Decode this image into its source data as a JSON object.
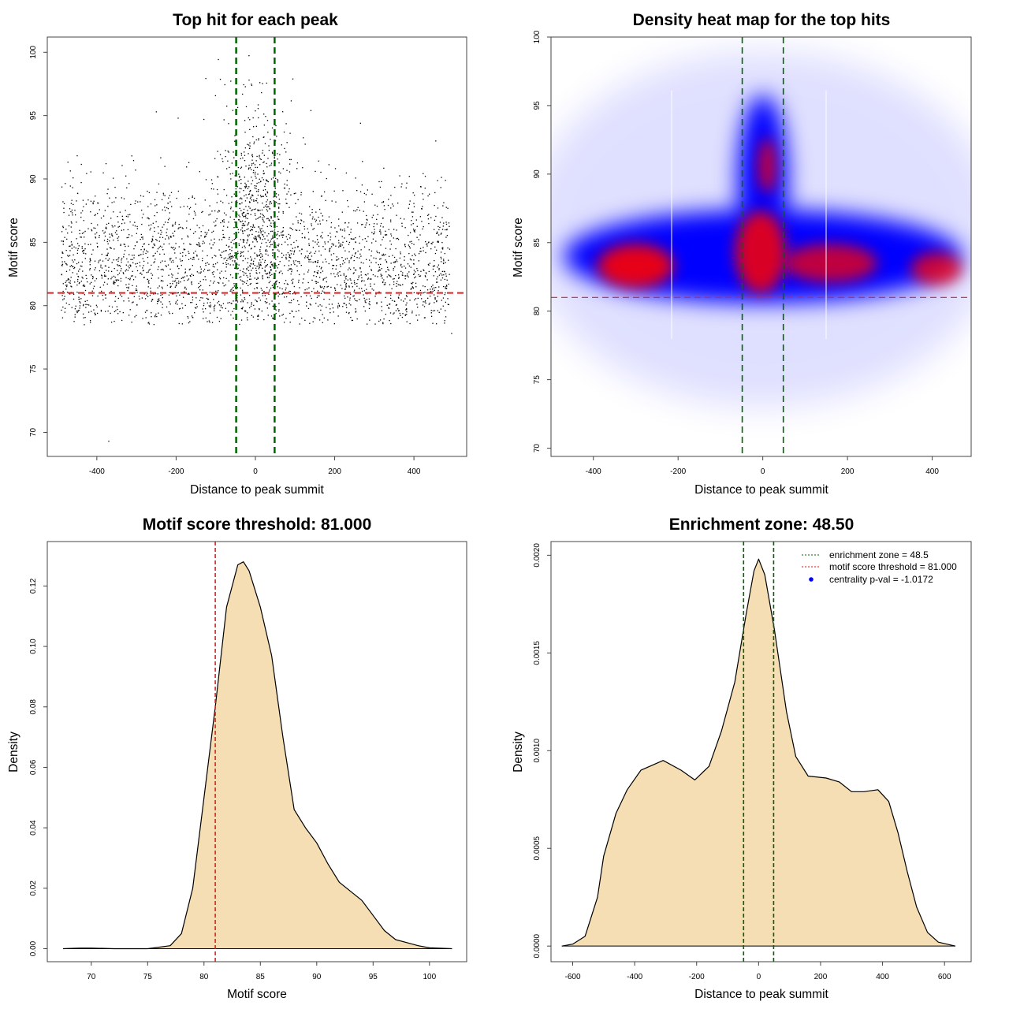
{
  "chart_data": [
    {
      "id": "scatter",
      "type": "scatter",
      "title": "Top hit for each peak",
      "xlabel": "Distance to peak summit",
      "ylabel": "Motif score",
      "xlim": [
        -525,
        533
      ],
      "ylim": [
        68.1,
        101.2
      ],
      "xticks": [
        -400,
        -200,
        0,
        200,
        400
      ],
      "yticks": [
        70,
        75,
        80,
        85,
        90,
        95,
        100
      ],
      "hlines": [
        {
          "y": 81,
          "color": "#e02020"
        }
      ],
      "vlines": [
        {
          "x": -48.5,
          "color": "#006400"
        },
        {
          "x": 48.5,
          "color": "#006400"
        }
      ],
      "point_model": {
        "background": {
          "n": 2600,
          "x_range": [
            -490,
            490
          ],
          "y_mode": 83,
          "y_spread": 2.6
        },
        "central": {
          "n": 550,
          "x_center": 0,
          "x_sd": 45,
          "y_center": 88,
          "y_sd": 4.2
        },
        "outliers": [
          [
            -370,
            69.3
          ],
          [
            495,
            77.8
          ],
          [
            -250,
            95.3
          ],
          [
            -130,
            94.7
          ],
          [
            -195,
            94.8
          ],
          [
            140,
            95.4
          ],
          [
            265,
            94.4
          ],
          [
            455,
            93.0
          ]
        ]
      }
    },
    {
      "id": "heatmap",
      "type": "heatmap",
      "title": "Density heat map for the top hits",
      "xlabel": "Distance to peak summit",
      "ylabel": "Motif score",
      "xlim": [
        -500,
        492
      ],
      "ylim": [
        69.4,
        100
      ],
      "xticks": [
        -400,
        -200,
        0,
        200,
        400
      ],
      "yticks": [
        70,
        75,
        80,
        85,
        90,
        95,
        100
      ],
      "hlines": [
        {
          "y": 81,
          "color": "#e02020"
        }
      ],
      "vlines": [
        {
          "x": -48.5,
          "color": "#006400"
        },
        {
          "x": 48.5,
          "color": "#006400"
        }
      ],
      "density_regions": [
        {
          "level": "low",
          "x": 0,
          "y": 86,
          "rx": 560,
          "ry": 13,
          "color": "#0000ff",
          "opacity": 0.12
        },
        {
          "level": "mid",
          "x": 0,
          "y": 84,
          "rx": 470,
          "ry": 3.4,
          "color": "#0000ff",
          "opacity": 1
        },
        {
          "level": "mid",
          "x": 0,
          "y": 89.5,
          "rx": 60,
          "ry": 6.3,
          "color": "#0000ff",
          "opacity": 1
        },
        {
          "level": "high",
          "x": -300,
          "y": 83.3,
          "rx": 90,
          "ry": 1.6,
          "color": "#ff0000",
          "opacity": 0.9
        },
        {
          "level": "high",
          "x": -5,
          "y": 84.3,
          "rx": 60,
          "ry": 3,
          "color": "#ff0000",
          "opacity": 0.85
        },
        {
          "level": "high",
          "x": 10,
          "y": 90.6,
          "rx": 20,
          "ry": 2,
          "color": "#ff0000",
          "opacity": 0.8
        },
        {
          "level": "high",
          "x": 160,
          "y": 83.5,
          "rx": 110,
          "ry": 1.4,
          "color": "#ff0000",
          "opacity": 0.75
        },
        {
          "level": "high",
          "x": 410,
          "y": 83.1,
          "rx": 60,
          "ry": 1.2,
          "color": "#ff0000",
          "opacity": 0.75
        }
      ]
    },
    {
      "id": "score-density",
      "type": "area",
      "title": "Motif score threshold: 81.000",
      "xlabel": "Motif score",
      "ylabel": "Density",
      "xlim": [
        66.1,
        103.3
      ],
      "ylim": [
        -0.0043,
        0.1347
      ],
      "xticks": [
        70,
        75,
        80,
        85,
        90,
        95,
        100
      ],
      "yticks": [
        0.0,
        0.02,
        0.04,
        0.06,
        0.08,
        0.1,
        0.12
      ],
      "ytick_labels": [
        "0.00",
        "0.02",
        "0.04",
        "0.06",
        "0.08",
        "0.10",
        "0.12"
      ],
      "fill": "#f5deb3",
      "vlines": [
        {
          "x": 81,
          "color": "#e02020"
        }
      ],
      "x": [
        67.5,
        69,
        70,
        72,
        75,
        77,
        78,
        79,
        80,
        81,
        82,
        83,
        83.5,
        84,
        85,
        86,
        87,
        88,
        89,
        90,
        91,
        92,
        93,
        94,
        95,
        96,
        97,
        98,
        99,
        100,
        102
      ],
      "y": [
        0,
        0.0002,
        0.0002,
        0,
        0,
        0.001,
        0.005,
        0.02,
        0.05,
        0.08,
        0.113,
        0.127,
        0.128,
        0.125,
        0.113,
        0.097,
        0.07,
        0.046,
        0.04,
        0.035,
        0.028,
        0.022,
        0.019,
        0.016,
        0.011,
        0.006,
        0.003,
        0.002,
        0.001,
        0.0003,
        0
      ]
    },
    {
      "id": "distance-density",
      "type": "area",
      "title": "Enrichment zone: 48.50",
      "xlabel": "Distance to peak summit",
      "ylabel": "Density",
      "xlim": [
        -670,
        686
      ],
      "ylim": [
        -8e-05,
        0.00207
      ],
      "xticks": [
        -600,
        -400,
        -200,
        0,
        200,
        400,
        600
      ],
      "yticks": [
        0.0,
        0.0005,
        0.001,
        0.0015,
        0.002
      ],
      "ytick_labels": [
        "0.0000",
        "0.0005",
        "0.0010",
        "0.0015",
        "0.0020"
      ],
      "fill": "#f5deb3",
      "vlines": [
        {
          "x": -48.5,
          "color": "#006400"
        },
        {
          "x": 48.5,
          "color": "#006400"
        }
      ],
      "x": [
        -635,
        -600,
        -560,
        -520,
        -500,
        -460,
        -424,
        -380,
        -308,
        -250,
        -206,
        -160,
        -120,
        -77,
        -40,
        -15,
        0,
        20,
        51,
        90,
        120,
        160,
        218,
        260,
        300,
        340,
        385,
        420,
        450,
        480,
        510,
        545,
        580,
        635
      ],
      "y": [
        0,
        1e-05,
        5e-05,
        0.00025,
        0.00046,
        0.00068,
        0.0008,
        0.0009,
        0.00095,
        0.0009,
        0.00085,
        0.00092,
        0.0011,
        0.00135,
        0.0017,
        0.00192,
        0.00198,
        0.0019,
        0.00162,
        0.0012,
        0.00097,
        0.00087,
        0.00086,
        0.00084,
        0.00079,
        0.00079,
        0.0008,
        0.00074,
        0.00058,
        0.00038,
        0.0002,
        7e-05,
        2e-05,
        0
      ],
      "legend": {
        "placement": "top-right",
        "entries": [
          {
            "label": "enrichment zone = 48.5",
            "style": "dotted-line",
            "color": "#006400"
          },
          {
            "label": "motif score threshold = 81.000",
            "style": "dotted-line",
            "color": "#ff0000"
          },
          {
            "label": "centrality p-val = -1.0172",
            "style": "point",
            "color": "#0000ff"
          }
        ]
      }
    }
  ]
}
